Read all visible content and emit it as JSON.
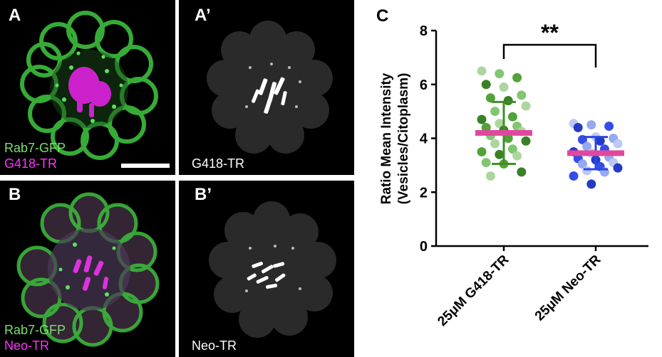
{
  "panels": {
    "a": {
      "letter": "A",
      "legend_1": "Rab7-GFP",
      "legend_2": "G418-TR"
    },
    "a_prime": {
      "letter": "A’",
      "legend": "G418-TR"
    },
    "b": {
      "letter": "B",
      "legend_1": "Rab7-GFP",
      "legend_2": "Neo-TR"
    },
    "b_prime": {
      "letter": "B’",
      "legend": "Neo-TR"
    }
  },
  "colors": {
    "rab7": "#7ddf6e",
    "tracer": "#ff33ff",
    "g418_points": "#4a9d2c",
    "neo_points": "#2a45e8",
    "mean_bar": "#e0489e"
  },
  "chart_data": {
    "type": "scatter",
    "panel_letter": "C",
    "ylabel_line1": "Ratio Mean Intensity",
    "ylabel_line2": "(Vesicles/Citoplasm)",
    "ylim": [
      0,
      8
    ],
    "yticks": [
      0,
      2,
      4,
      6,
      8
    ],
    "categories": [
      "25μM G418-TR",
      "25μM Neo-TR"
    ],
    "significance": "**",
    "series": [
      {
        "category": "25μM G418-TR",
        "mean": 4.2,
        "sd_low": 3.05,
        "sd_high": 5.35,
        "values": [
          6.5,
          6.4,
          6.25,
          6.0,
          5.9,
          5.6,
          5.5,
          5.4,
          5.2,
          5.0,
          4.8,
          4.7,
          4.55,
          4.45,
          4.4,
          4.3,
          4.25,
          4.1,
          4.0,
          3.9,
          3.8,
          3.6,
          3.5,
          3.4,
          3.35,
          3.1,
          3.05,
          2.75,
          2.6
        ]
      },
      {
        "category": "25μM Neo-TR",
        "mean": 3.45,
        "sd_low": 2.85,
        "sd_high": 4.05,
        "values": [
          4.55,
          4.5,
          4.45,
          4.4,
          4.05,
          4.0,
          3.95,
          3.9,
          3.8,
          3.7,
          3.6,
          3.5,
          3.45,
          3.3,
          3.25,
          3.2,
          3.1,
          3.05,
          2.95,
          2.9,
          2.8,
          2.75,
          2.6,
          2.3
        ]
      }
    ]
  }
}
